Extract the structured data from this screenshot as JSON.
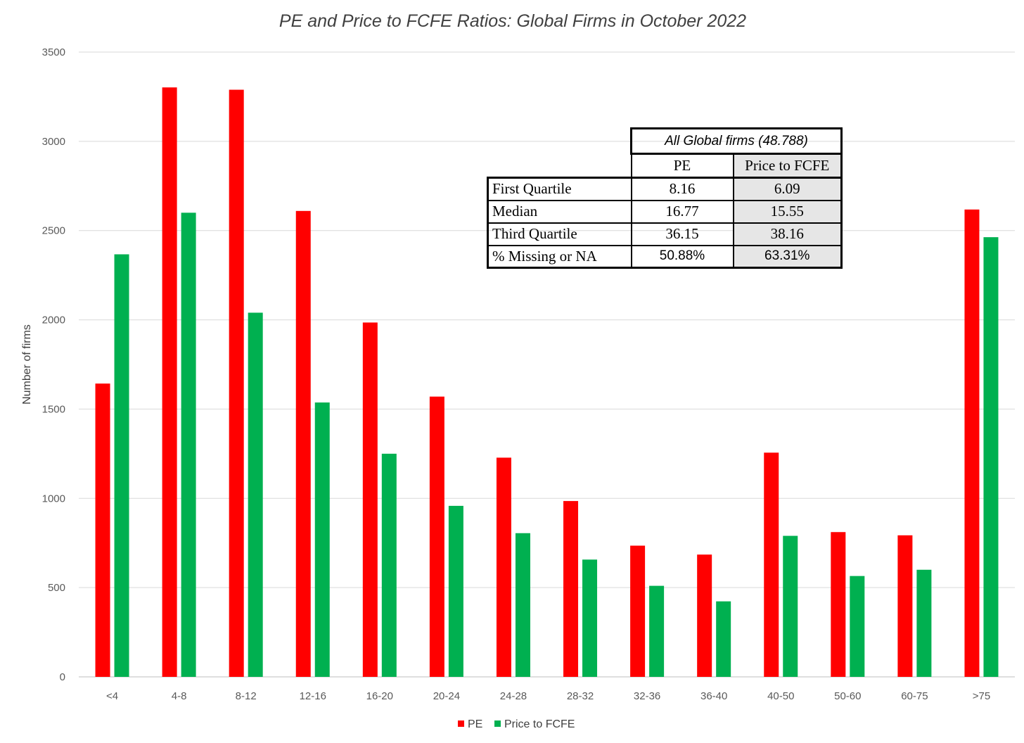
{
  "chart_data": {
    "type": "bar",
    "title": "PE and Price to FCFE Ratios: Global Firms in October 2022",
    "xlabel": "",
    "ylabel": "Number of firms",
    "ylim": [
      0,
      3500
    ],
    "yticks": [
      "0",
      "500",
      "1000",
      "1500",
      "2000",
      "2500",
      "3000",
      "3500"
    ],
    "grid": true,
    "legend_position": "bottom",
    "categories": [
      "<4",
      "4-8",
      "8-12",
      "12-16",
      "16-20",
      "20-24",
      "24-28",
      "28-32",
      "32-36",
      "36-40",
      "40-50",
      "50-60",
      "60-75",
      ">75"
    ],
    "series": [
      {
        "name": "PE",
        "color": "#ff0000",
        "values": [
          1643,
          3302,
          3289,
          2610,
          1985,
          1570,
          1228,
          985,
          735,
          685,
          1256,
          811,
          793,
          2618
        ]
      },
      {
        "name": "Price to FCFE",
        "color": "#00b050",
        "values": [
          2367,
          2600,
          2040,
          1537,
          1250,
          958,
          805,
          657,
          510,
          423,
          790,
          565,
          600,
          2463
        ]
      }
    ]
  },
  "table": {
    "caption": "All Global firms (48.788)",
    "columns": [
      "PE",
      "Price to FCFE"
    ],
    "rows": [
      {
        "label": "First Quartile",
        "pe": "8.16",
        "fcfe": "6.09"
      },
      {
        "label": "Median",
        "pe": "16.77",
        "fcfe": "15.55"
      },
      {
        "label": "Third Quartile",
        "pe": "36.15",
        "fcfe": "38.16"
      },
      {
        "label": "% Missing or NA",
        "pe": "50.88%",
        "fcfe": "63.31%"
      }
    ]
  }
}
